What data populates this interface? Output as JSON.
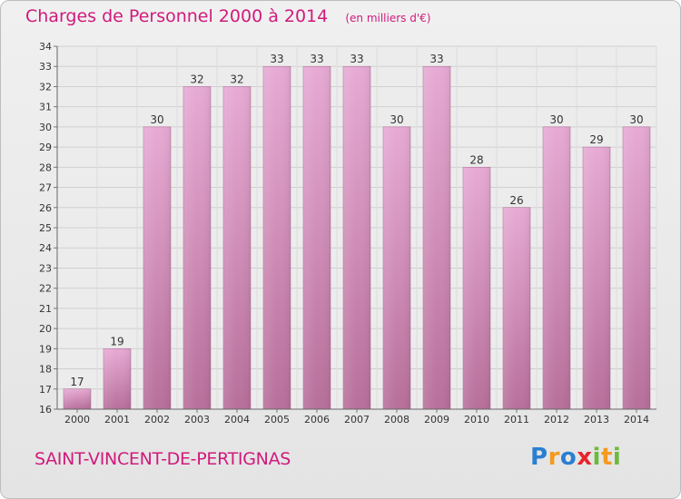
{
  "header": {
    "title": "Charges de Personnel 2000 à 2014",
    "subtitle": "(en milliers d'€)"
  },
  "footer": {
    "commune": "SAINT-VINCENT-DE-PERTIGNAS",
    "logo_letters": [
      {
        "char": "P",
        "color": "#2a7fd1"
      },
      {
        "char": "r",
        "color": "#f39a1e"
      },
      {
        "char": "o",
        "color": "#2a7fd1"
      },
      {
        "char": "x",
        "color": "#e8242c"
      },
      {
        "char": "i",
        "color": "#6cba3c"
      },
      {
        "char": "t",
        "color": "#f39a1e"
      },
      {
        "char": "i",
        "color": "#6cba3c"
      }
    ]
  },
  "colors": {
    "accent": "#d11a7c",
    "bar_top": "#e7aad4",
    "bar_bottom": "#b76f9a"
  },
  "chart_data": {
    "type": "bar",
    "title": "Charges de Personnel 2000 à 2014",
    "subtitle": "(en milliers d'€)",
    "categories": [
      "2000",
      "2001",
      "2002",
      "2003",
      "2004",
      "2005",
      "2006",
      "2007",
      "2008",
      "2009",
      "2010",
      "2011",
      "2012",
      "2013",
      "2014"
    ],
    "values": [
      17,
      19,
      30,
      32,
      32,
      33,
      33,
      33,
      30,
      33,
      28,
      26,
      30,
      29,
      30
    ],
    "ylim": [
      16,
      34
    ],
    "yticks": [
      16,
      17,
      18,
      19,
      20,
      21,
      22,
      23,
      24,
      25,
      26,
      27,
      28,
      29,
      30,
      31,
      32,
      33,
      34
    ],
    "grid": true,
    "xlabel": "",
    "ylabel": ""
  }
}
